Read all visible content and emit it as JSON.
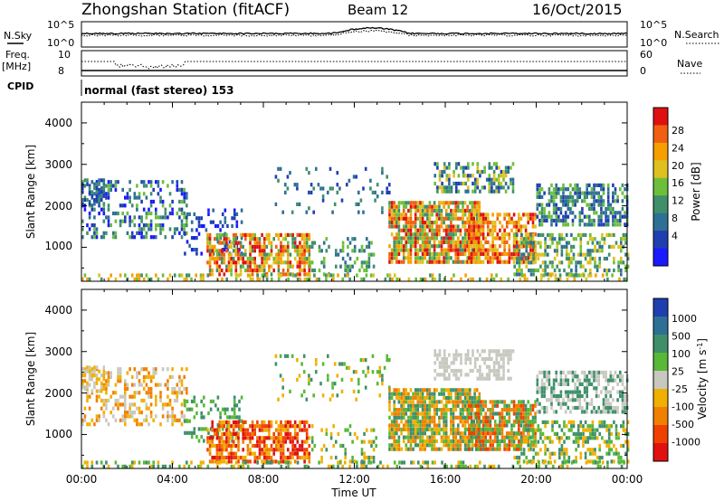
{
  "header": {
    "station": "Zhongshan Station (fitACF)",
    "beam": "Beam 12",
    "date": "16/Oct/2015"
  },
  "top_panels": {
    "nsky_label": "N.Sky",
    "nsky_ticks": [
      "10^5",
      "10^0"
    ],
    "nsearch_label": "N.Search",
    "nsearch_ticks": [
      "10^5",
      "10^0"
    ],
    "freq_label": "Freq.",
    "freq_unit": "[MHz]",
    "freq_ticks": [
      "10",
      "8"
    ],
    "nave_label": "Nave",
    "nave_ticks": [
      "60",
      "0"
    ],
    "cpid_label": "CPID",
    "cpid_value": "normal (fast stereo) 153"
  },
  "colors": {
    "power_scale": [
      "#1a1aff",
      "#1f3fb0",
      "#2e6f95",
      "#3f8f6a",
      "#6cbf3a",
      "#e0c020",
      "#f5a000",
      "#f06010",
      "#e01010"
    ],
    "velocity_scale": [
      "#1f3fb0",
      "#2e6f95",
      "#3f8f6a",
      "#58b838",
      "#c8c8c0",
      "#f0b000",
      "#f08000",
      "#f04000",
      "#e01010"
    ]
  },
  "chart_data": [
    {
      "type": "heatmap",
      "title": "Power",
      "ylabel": "Slant Range [km]",
      "yticks": [
        "4000",
        "3000",
        "2000",
        "1000"
      ],
      "ylim": [
        180,
        4500
      ],
      "xlim": [
        "00:00",
        "24:00"
      ],
      "colorbar_label": "Power [dB]",
      "colorbar_ticks": [
        "28",
        "24",
        "20",
        "16",
        "12",
        "8",
        "4"
      ],
      "colorbar_range": [
        0,
        32
      ]
    },
    {
      "type": "heatmap",
      "title": "Velocity",
      "ylabel": "Slant Range [km]",
      "yticks": [
        "4000",
        "3000",
        "2000",
        "1000"
      ],
      "ylim": [
        180,
        4500
      ],
      "xlim": [
        "00:00",
        "24:00"
      ],
      "xlabel": "Time UT",
      "xticks": [
        "00:00",
        "04:00",
        "08:00",
        "12:00",
        "16:00",
        "20:00",
        "00:00"
      ],
      "colorbar_label": "Velocity [m s",
      "colorbar_label_sup": "-1",
      "colorbar_label_end": "]",
      "colorbar_ticks": [
        "1000",
        "500",
        "100",
        "25",
        "-25",
        "-100",
        "-500",
        "-1000"
      ]
    }
  ]
}
